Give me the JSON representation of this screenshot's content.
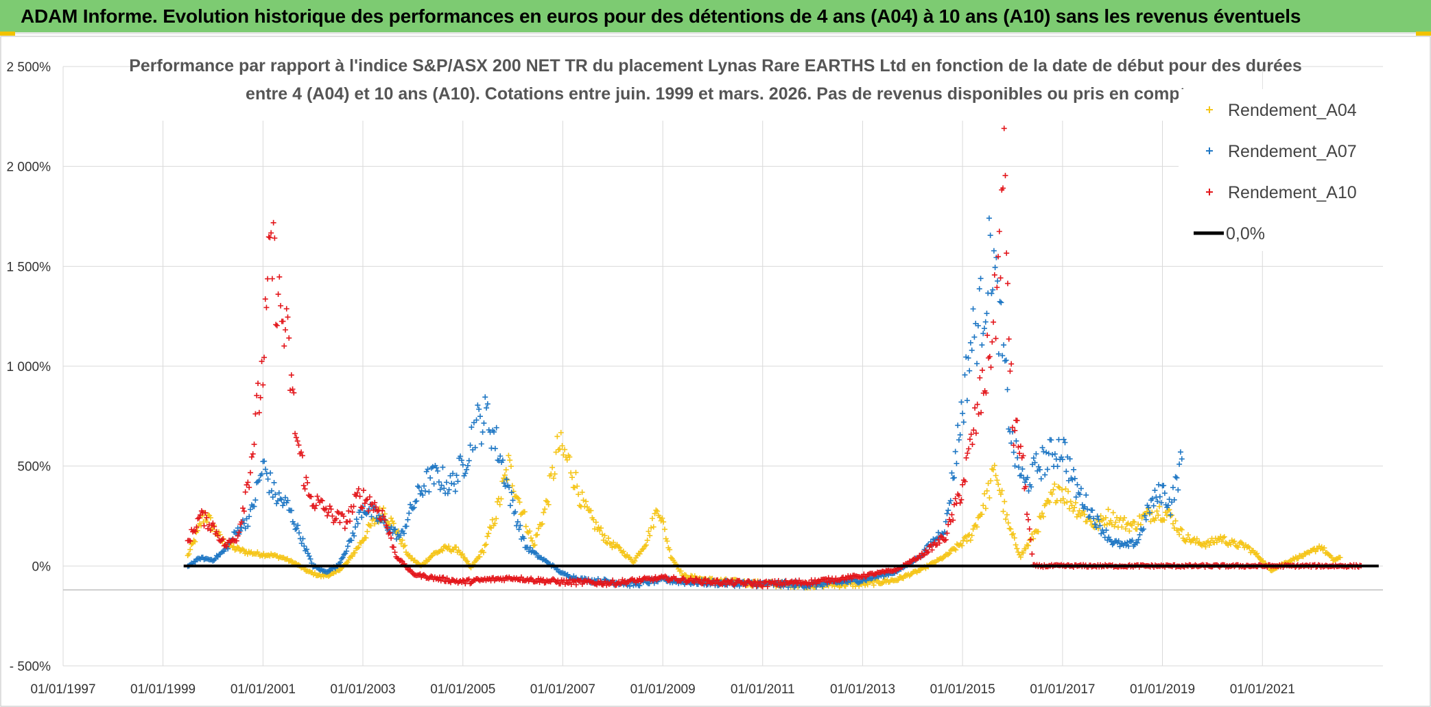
{
  "banner": {
    "title": "ADAM Informe. Evolution historique des performances en euros pour des détentions de 4 ans (A04) à 10 ans (A10) sans les revenus éventuels"
  },
  "colors": {
    "banner_bg": "#7dcb72",
    "a04": "#f5c518",
    "a07": "#1f77c4",
    "a10": "#e3161b",
    "zero_line": "#000000",
    "grid": "#d9d9d9"
  },
  "chart_data": {
    "type": "scatter",
    "title_line1": "Performance par rapport à l'indice S&P/ASX 200 NET TR  du placement Lynas Rare EARTHS Ltd en fonction de la date de début pour des durées",
    "title_line2": "entre 4 (A04) et 10 ans (A10). Cotations entre juin. 1999 et mars. 2026. Pas de revenus disponibles ou pris en compt",
    "x_unit": "date",
    "xlim": [
      "1997-01-01",
      "2023-06-01"
    ],
    "xticks": [
      "01/01/1997",
      "01/01/1999",
      "01/01/2001",
      "01/01/2003",
      "01/01/2005",
      "01/01/2007",
      "01/01/2009",
      "01/01/2011",
      "01/01/2013",
      "01/01/2015",
      "01/01/2017",
      "01/01/2019",
      "01/01/2021"
    ],
    "ylim": [
      -500,
      2500
    ],
    "yticks": [
      -500,
      0,
      500,
      1000,
      1500,
      2000,
      2500
    ],
    "ytick_labels": [
      "- 500%",
      "0%",
      "500%",
      "1 000%",
      "1 500%",
      "2 000%",
      "2 500%"
    ],
    "grid": true,
    "legend_position": "top-right",
    "series": [
      {
        "name": "Rendement_A04",
        "marker": "+",
        "points": [
          [
            "1999-07-01",
            50
          ],
          [
            "1999-09-01",
            150
          ],
          [
            "1999-11-01",
            260
          ],
          [
            "2000-01-01",
            200
          ],
          [
            "2000-03-01",
            130
          ],
          [
            "2000-06-01",
            90
          ],
          [
            "2000-09-01",
            70
          ],
          [
            "2000-12-01",
            60
          ],
          [
            "2001-03-01",
            55
          ],
          [
            "2001-06-01",
            40
          ],
          [
            "2001-09-01",
            10
          ],
          [
            "2001-12-01",
            -30
          ],
          [
            "2002-03-01",
            -50
          ],
          [
            "2002-06-01",
            -40
          ],
          [
            "2002-09-01",
            10
          ],
          [
            "2002-12-01",
            100
          ],
          [
            "2003-03-01",
            200
          ],
          [
            "2003-06-01",
            280
          ],
          [
            "2003-09-01",
            180
          ],
          [
            "2003-12-01",
            50
          ],
          [
            "2004-03-01",
            0
          ],
          [
            "2004-06-01",
            60
          ],
          [
            "2004-09-01",
            90
          ],
          [
            "2004-12-01",
            80
          ],
          [
            "2005-03-01",
            -10
          ],
          [
            "2005-06-01",
            80
          ],
          [
            "2005-09-01",
            260
          ],
          [
            "2005-12-01",
            500
          ],
          [
            "2006-03-01",
            300
          ],
          [
            "2006-06-01",
            100
          ],
          [
            "2006-09-01",
            300
          ],
          [
            "2006-12-01",
            600
          ],
          [
            "2007-03-01",
            500
          ],
          [
            "2007-06-01",
            300
          ],
          [
            "2007-09-01",
            200
          ],
          [
            "2007-12-01",
            120
          ],
          [
            "2008-03-01",
            80
          ],
          [
            "2008-06-01",
            20
          ],
          [
            "2008-09-01",
            120
          ],
          [
            "2008-12-01",
            300
          ],
          [
            "2009-03-01",
            50
          ],
          [
            "2009-06-01",
            -50
          ],
          [
            "2009-09-01",
            -60
          ],
          [
            "2009-12-01",
            -70
          ],
          [
            "2010-06-01",
            -80
          ],
          [
            "2011-01-01",
            -90
          ],
          [
            "2012-01-01",
            -95
          ],
          [
            "2013-01-01",
            -90
          ],
          [
            "2013-09-01",
            -70
          ],
          [
            "2014-03-01",
            -20
          ],
          [
            "2014-09-01",
            50
          ],
          [
            "2015-03-01",
            150
          ],
          [
            "2015-06-01",
            300
          ],
          [
            "2015-09-01",
            480
          ],
          [
            "2015-12-01",
            200
          ],
          [
            "2016-03-01",
            50
          ],
          [
            "2016-06-01",
            150
          ],
          [
            "2016-09-01",
            280
          ],
          [
            "2016-12-01",
            400
          ],
          [
            "2017-03-01",
            320
          ],
          [
            "2017-06-01",
            260
          ],
          [
            "2017-09-01",
            200
          ],
          [
            "2017-12-01",
            250
          ],
          [
            "2018-03-01",
            220
          ],
          [
            "2018-06-01",
            200
          ],
          [
            "2018-09-01",
            250
          ],
          [
            "2018-12-01",
            280
          ],
          [
            "2019-03-01",
            250
          ],
          [
            "2019-06-01",
            150
          ],
          [
            "2019-09-01",
            120
          ],
          [
            "2019-12-01",
            110
          ],
          [
            "2020-03-01",
            140
          ],
          [
            "2020-06-01",
            110
          ],
          [
            "2020-09-01",
            100
          ],
          [
            "2020-12-01",
            50
          ],
          [
            "2021-03-01",
            -20
          ],
          [
            "2021-06-01",
            10
          ],
          [
            "2021-09-01",
            40
          ],
          [
            "2021-12-01",
            60
          ],
          [
            "2022-03-01",
            100
          ],
          [
            "2022-06-01",
            30
          ],
          [
            "2022-08-01",
            40
          ]
        ]
      },
      {
        "name": "Rendement_A07",
        "marker": "+",
        "points": [
          [
            "1999-07-01",
            0
          ],
          [
            "1999-10-01",
            40
          ],
          [
            "2000-01-01",
            30
          ],
          [
            "2000-04-01",
            80
          ],
          [
            "2000-07-01",
            180
          ],
          [
            "2000-10-01",
            250
          ],
          [
            "2001-01-01",
            500
          ],
          [
            "2001-04-01",
            350
          ],
          [
            "2001-07-01",
            300
          ],
          [
            "2001-10-01",
            150
          ],
          [
            "2002-01-01",
            0
          ],
          [
            "2002-04-01",
            -30
          ],
          [
            "2002-07-01",
            0
          ],
          [
            "2002-10-01",
            120
          ],
          [
            "2003-01-01",
            300
          ],
          [
            "2003-04-01",
            250
          ],
          [
            "2003-07-01",
            200
          ],
          [
            "2003-10-01",
            140
          ],
          [
            "2004-01-01",
            300
          ],
          [
            "2004-04-01",
            420
          ],
          [
            "2004-07-01",
            450
          ],
          [
            "2004-10-01",
            400
          ],
          [
            "2005-01-01",
            500
          ],
          [
            "2005-04-01",
            700
          ],
          [
            "2005-07-01",
            750
          ],
          [
            "2005-10-01",
            550
          ],
          [
            "2006-01-01",
            300
          ],
          [
            "2006-04-01",
            100
          ],
          [
            "2006-07-01",
            50
          ],
          [
            "2006-10-01",
            10
          ],
          [
            "2007-01-01",
            -40
          ],
          [
            "2007-06-01",
            -70
          ],
          [
            "2008-01-01",
            -80
          ],
          [
            "2008-06-01",
            -90
          ],
          [
            "2009-01-01",
            -70
          ],
          [
            "2009-06-01",
            -80
          ],
          [
            "2010-01-01",
            -85
          ],
          [
            "2011-01-01",
            -90
          ],
          [
            "2012-01-01",
            -95
          ],
          [
            "2013-01-01",
            -70
          ],
          [
            "2013-09-01",
            -30
          ],
          [
            "2014-03-01",
            50
          ],
          [
            "2014-09-01",
            200
          ],
          [
            "2015-01-01",
            800
          ],
          [
            "2015-03-01",
            1100
          ],
          [
            "2015-06-01",
            1300
          ],
          [
            "2015-08-01",
            1600
          ],
          [
            "2015-10-01",
            1200
          ],
          [
            "2016-01-01",
            600
          ],
          [
            "2016-04-01",
            400
          ],
          [
            "2016-07-01",
            500
          ],
          [
            "2016-10-01",
            550
          ],
          [
            "2017-01-01",
            600
          ],
          [
            "2017-04-01",
            400
          ],
          [
            "2017-07-01",
            300
          ],
          [
            "2017-10-01",
            200
          ],
          [
            "2018-01-01",
            120
          ],
          [
            "2018-04-01",
            100
          ],
          [
            "2018-07-01",
            120
          ],
          [
            "2018-10-01",
            300
          ],
          [
            "2019-01-01",
            380
          ],
          [
            "2019-03-01",
            300
          ],
          [
            "2019-06-01",
            550
          ]
        ]
      },
      {
        "name": "Rendement_A10",
        "marker": "+",
        "points": [
          [
            "1999-07-01",
            120
          ],
          [
            "1999-10-01",
            250
          ],
          [
            "2000-01-01",
            200
          ],
          [
            "2000-04-01",
            100
          ],
          [
            "2000-07-01",
            150
          ],
          [
            "2000-10-01",
            500
          ],
          [
            "2001-01-01",
            1000
          ],
          [
            "2001-03-01",
            1600
          ],
          [
            "2001-05-01",
            1300
          ],
          [
            "2001-07-01",
            1100
          ],
          [
            "2001-09-01",
            650
          ],
          [
            "2001-12-01",
            350
          ],
          [
            "2002-03-01",
            300
          ],
          [
            "2002-06-01",
            250
          ],
          [
            "2002-09-01",
            220
          ],
          [
            "2002-12-01",
            350
          ],
          [
            "2003-03-01",
            320
          ],
          [
            "2003-06-01",
            250
          ],
          [
            "2003-09-01",
            50
          ],
          [
            "2004-01-01",
            -40
          ],
          [
            "2004-06-01",
            -60
          ],
          [
            "2005-01-01",
            -80
          ],
          [
            "2005-06-01",
            -70
          ],
          [
            "2006-01-01",
            -60
          ],
          [
            "2006-06-01",
            -70
          ],
          [
            "2007-01-01",
            -80
          ],
          [
            "2008-01-01",
            -85
          ],
          [
            "2009-01-01",
            -60
          ],
          [
            "2009-06-01",
            -70
          ],
          [
            "2010-01-01",
            -80
          ],
          [
            "2011-01-01",
            -90
          ],
          [
            "2012-01-01",
            -80
          ],
          [
            "2013-01-01",
            -50
          ],
          [
            "2013-09-01",
            -20
          ],
          [
            "2014-03-01",
            50
          ],
          [
            "2014-09-01",
            150
          ],
          [
            "2015-01-01",
            400
          ],
          [
            "2015-04-01",
            700
          ],
          [
            "2015-07-01",
            1000
          ],
          [
            "2015-09-01",
            1300
          ],
          [
            "2015-11-01",
            1950
          ],
          [
            "2016-01-01",
            700
          ],
          [
            "2016-03-01",
            600
          ],
          [
            "2016-06-01",
            0
          ],
          [
            "2017-01-01",
            0
          ],
          [
            "2018-01-01",
            0
          ],
          [
            "2019-01-01",
            0
          ],
          [
            "2020-01-01",
            0
          ],
          [
            "2021-01-01",
            0
          ],
          [
            "2022-01-01",
            0
          ],
          [
            "2023-01-01",
            0
          ]
        ]
      },
      {
        "name": "0,0%",
        "type": "line",
        "points": [
          [
            "1999-06-01",
            0
          ],
          [
            "2023-05-01",
            0
          ]
        ]
      }
    ]
  }
}
